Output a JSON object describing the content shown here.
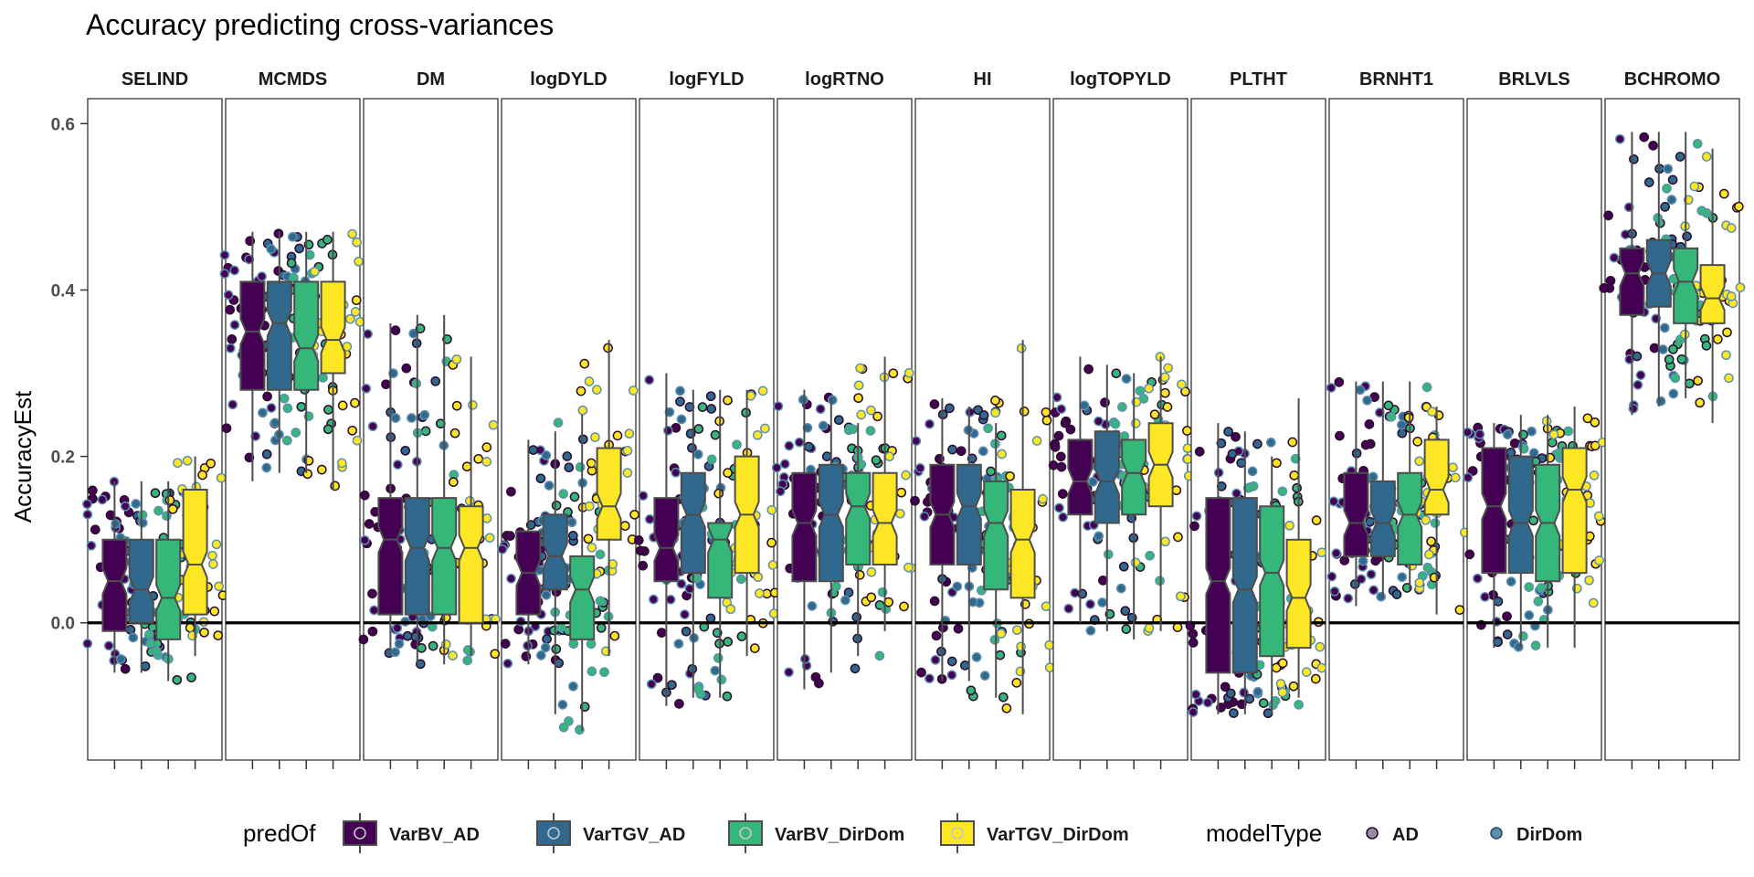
{
  "chart_data": {
    "type": "box",
    "title": "Accuracy predicting cross-variances",
    "ylabel": "AccuracyEst",
    "xlabel": "",
    "ylim": [
      -0.165,
      0.63
    ],
    "yticks": [
      0.0,
      0.2,
      0.4,
      0.6
    ],
    "ytick_labels": [
      "0.0",
      "0.2",
      "0.4",
      "0.6"
    ],
    "reference_line": 0.0,
    "panels": [
      "SELIND",
      "MCMDS",
      "DM",
      "logDYLD",
      "logFYLD",
      "logRTNO",
      "HI",
      "logTOPYLD",
      "PLTHT",
      "BRNHT1",
      "BRLVLS",
      "BCHROMO"
    ],
    "series": [
      {
        "name": "VarBV_AD",
        "color": "#440154",
        "stats": [
          [
            -0.06,
            -0.01,
            0.05,
            0.1,
            0.17
          ],
          [
            0.17,
            0.28,
            0.35,
            0.41,
            0.47
          ],
          [
            -0.04,
            0.01,
            0.1,
            0.15,
            0.36
          ],
          [
            -0.05,
            0.01,
            0.06,
            0.11,
            0.22
          ],
          [
            -0.1,
            0.05,
            0.09,
            0.15,
            0.3
          ],
          [
            -0.08,
            0.05,
            0.12,
            0.18,
            0.28
          ],
          [
            -0.07,
            0.07,
            0.13,
            0.19,
            0.27
          ],
          [
            0.0,
            0.13,
            0.17,
            0.22,
            0.32
          ],
          [
            -0.11,
            -0.06,
            0.05,
            0.15,
            0.24
          ],
          [
            0.02,
            0.08,
            0.12,
            0.18,
            0.29
          ],
          [
            -0.03,
            0.06,
            0.14,
            0.21,
            0.24
          ],
          [
            0.25,
            0.37,
            0.42,
            0.45,
            0.59
          ]
        ]
      },
      {
        "name": "VarTGV_AD",
        "color": "#31688E",
        "stats": [
          [
            -0.06,
            0.0,
            0.04,
            0.1,
            0.17
          ],
          [
            0.18,
            0.28,
            0.36,
            0.41,
            0.47
          ],
          [
            -0.05,
            0.01,
            0.09,
            0.15,
            0.37
          ],
          [
            -0.11,
            0.04,
            0.08,
            0.13,
            0.23
          ],
          [
            -0.09,
            0.06,
            0.13,
            0.18,
            0.28
          ],
          [
            -0.06,
            0.05,
            0.13,
            0.19,
            0.27
          ],
          [
            -0.07,
            0.07,
            0.14,
            0.19,
            0.26
          ],
          [
            -0.01,
            0.12,
            0.17,
            0.23,
            0.31
          ],
          [
            -0.11,
            -0.06,
            0.04,
            0.15,
            0.23
          ],
          [
            0.03,
            0.08,
            0.12,
            0.17,
            0.29
          ],
          [
            -0.03,
            0.06,
            0.12,
            0.2,
            0.25
          ],
          [
            0.26,
            0.38,
            0.42,
            0.46,
            0.59
          ]
        ]
      },
      {
        "name": "VarBV_DirDom",
        "color": "#35B779",
        "stats": [
          [
            -0.07,
            -0.02,
            0.03,
            0.1,
            0.17
          ],
          [
            0.18,
            0.28,
            0.33,
            0.41,
            0.47
          ],
          [
            -0.05,
            0.01,
            0.09,
            0.15,
            0.37
          ],
          [
            -0.13,
            -0.02,
            0.04,
            0.08,
            0.25
          ],
          [
            -0.09,
            0.03,
            0.1,
            0.12,
            0.28
          ],
          [
            -0.04,
            0.07,
            0.14,
            0.18,
            0.24
          ],
          [
            -0.09,
            0.04,
            0.12,
            0.17,
            0.24
          ],
          [
            -0.02,
            0.13,
            0.18,
            0.22,
            0.3
          ],
          [
            -0.11,
            -0.04,
            0.06,
            0.14,
            0.2
          ],
          [
            0.04,
            0.07,
            0.13,
            0.18,
            0.29
          ],
          [
            -0.03,
            0.05,
            0.12,
            0.19,
            0.25
          ],
          [
            0.27,
            0.36,
            0.41,
            0.45,
            0.59
          ]
        ]
      },
      {
        "name": "VarTGV_DirDom",
        "color": "#FDE725",
        "stats": [
          [
            -0.04,
            0.01,
            0.07,
            0.16,
            0.2
          ],
          [
            0.16,
            0.3,
            0.34,
            0.41,
            0.47
          ],
          [
            -0.04,
            0.0,
            0.09,
            0.14,
            0.32
          ],
          [
            -0.04,
            0.1,
            0.14,
            0.21,
            0.34
          ],
          [
            -0.04,
            0.06,
            0.13,
            0.2,
            0.28
          ],
          [
            -0.01,
            0.07,
            0.12,
            0.18,
            0.32
          ],
          [
            -0.11,
            0.03,
            0.1,
            0.16,
            0.34
          ],
          [
            -0.01,
            0.14,
            0.19,
            0.24,
            0.32
          ],
          [
            -0.09,
            -0.03,
            0.03,
            0.1,
            0.27
          ],
          [
            0.01,
            0.13,
            0.16,
            0.22,
            0.26
          ],
          [
            -0.03,
            0.06,
            0.16,
            0.21,
            0.26
          ],
          [
            0.24,
            0.36,
            0.39,
            0.43,
            0.57
          ]
        ]
      }
    ],
    "modelType": [
      {
        "name": "AD",
        "color": "#9a8aa3"
      },
      {
        "name": "DirDom",
        "color": "#5d8fae"
      }
    ],
    "points_per_group": 36,
    "legend": {
      "position": "bottom",
      "fill_title": "predOf",
      "shape_title": "modelType"
    }
  }
}
